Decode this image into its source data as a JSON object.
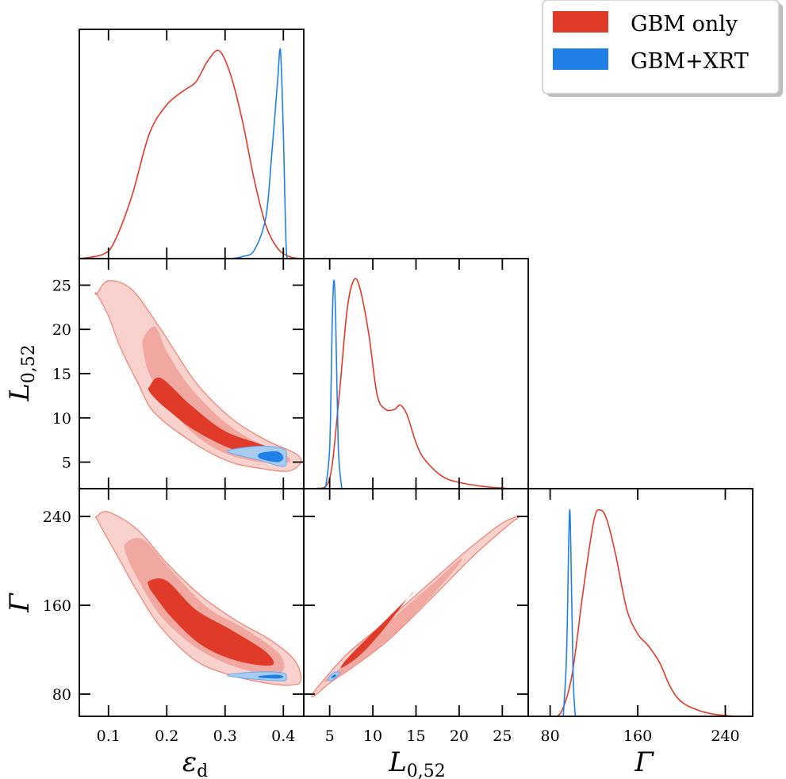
{
  "chart_data": {
    "type": "corner",
    "colors": {
      "gbm_only": "#e03a28",
      "gbm_xrt": "#2080e8"
    },
    "legend": {
      "placement": "top-right",
      "entries": [
        "GBM only",
        "GBM+XRT"
      ]
    },
    "grid": false,
    "parameters": [
      {
        "key": "eps",
        "label": "ε",
        "sub": "d",
        "range": [
          0.05,
          0.435
        ],
        "ticks": [
          0.1,
          0.2,
          0.3,
          0.4
        ],
        "tick_labels": [
          "0.1",
          "0.2",
          "0.3",
          "0.4"
        ]
      },
      {
        "key": "L",
        "label": "L",
        "sub": "0,52",
        "range": [
          2,
          28
        ],
        "ticks": [
          5,
          10,
          15,
          20,
          25
        ],
        "tick_labels": [
          "5",
          "10",
          "15",
          "20",
          "25"
        ]
      },
      {
        "key": "G",
        "label": "Γ",
        "sub": "",
        "range": [
          60,
          265
        ],
        "ticks": [
          80,
          160,
          240
        ],
        "tick_labels": [
          "80",
          "160",
          "240"
        ]
      }
    ],
    "marginals": {
      "eps": {
        "gbm_only": {
          "x": [
            0.05,
            0.09,
            0.11,
            0.14,
            0.17,
            0.2,
            0.23,
            0.25,
            0.27,
            0.29,
            0.31,
            0.33,
            0.35,
            0.37,
            0.39,
            0.41,
            0.43
          ],
          "y": [
            0.0,
            0.02,
            0.08,
            0.3,
            0.6,
            0.74,
            0.81,
            0.85,
            0.95,
            1.0,
            0.88,
            0.66,
            0.38,
            0.16,
            0.05,
            0.01,
            0.0
          ]
        },
        "gbm_xrt": {
          "x": [
            0.31,
            0.33,
            0.35,
            0.37,
            0.38,
            0.39,
            0.395,
            0.4,
            0.405,
            0.41
          ],
          "y": [
            0.0,
            0.01,
            0.04,
            0.2,
            0.5,
            0.85,
            1.0,
            0.6,
            0.05,
            0.0
          ]
        }
      },
      "L": {
        "gbm_only": {
          "x": [
            3.5,
            5,
            6,
            7,
            7.8,
            8.5,
            9.5,
            10.5,
            11.5,
            12.5,
            13.2,
            14,
            15,
            16,
            18,
            20,
            23,
            26
          ],
          "y": [
            0.0,
            0.05,
            0.4,
            0.85,
            1.0,
            0.96,
            0.75,
            0.45,
            0.38,
            0.38,
            0.4,
            0.35,
            0.22,
            0.14,
            0.06,
            0.03,
            0.01,
            0.0
          ]
        },
        "gbm_xrt": {
          "x": [
            4.5,
            5.0,
            5.3,
            5.5,
            5.7,
            6.0,
            6.4
          ],
          "y": [
            0.0,
            0.2,
            0.8,
            1.0,
            0.8,
            0.2,
            0.0
          ]
        }
      },
      "G": {
        "gbm_only": {
          "x": [
            80,
            90,
            100,
            110,
            120,
            126,
            132,
            140,
            150,
            160,
            170,
            180,
            190,
            200,
            215,
            230,
            250
          ],
          "y": [
            0.0,
            0.02,
            0.2,
            0.6,
            0.95,
            1.0,
            0.95,
            0.78,
            0.52,
            0.4,
            0.34,
            0.26,
            0.14,
            0.07,
            0.03,
            0.01,
            0.0
          ]
        },
        "gbm_xrt": {
          "x": [
            92,
            95,
            97,
            98,
            99,
            101,
            103
          ],
          "y": [
            0.0,
            0.3,
            0.85,
            1.0,
            0.8,
            0.2,
            0.0
          ]
        }
      }
    },
    "joint": [
      {
        "x": "eps",
        "y": "L",
        "gbm_only": [
          {
            "level": 2,
            "x": [
              0.08,
              0.1,
              0.14,
              0.19,
              0.25,
              0.31,
              0.37,
              0.42,
              0.43,
              0.41,
              0.37,
              0.31,
              0.25,
              0.18,
              0.15,
              0.12,
              0.1,
              0.08
            ],
            "y": [
              24,
              25.5,
              24.5,
              20,
              14,
              10,
              7.5,
              6,
              5,
              4,
              4.2,
              5,
              7,
              10.5,
              14,
              18,
              21.5,
              24
            ]
          },
          {
            "level": 1,
            "x": [
              0.16,
              0.18,
              0.2,
              0.24,
              0.3,
              0.36,
              0.4,
              0.41,
              0.36,
              0.3,
              0.25,
              0.2,
              0.17,
              0.16
            ],
            "y": [
              19,
              20.3,
              17.5,
              13.5,
              9.5,
              7,
              6,
              5,
              5,
              6,
              8,
              11.5,
              15,
              17.5
            ]
          },
          {
            "level": 0,
            "x": [
              0.17,
              0.19,
              0.24,
              0.3,
              0.37,
              0.38,
              0.32,
              0.25,
              0.2,
              0.18,
              0.17
            ],
            "y": [
              13.5,
              14.5,
              11.5,
              8.5,
              6.8,
              6,
              6.3,
              8.5,
              11,
              12.2,
              13
            ]
          }
        ],
        "gbm_xrt": [
          {
            "level": 1,
            "x": [
              0.31,
              0.36,
              0.4,
              0.405,
              0.4,
              0.36,
              0.31
            ],
            "y": [
              6.4,
              6.8,
              6.5,
              5.5,
              4.5,
              5.2,
              6.0
            ]
          },
          {
            "level": 0,
            "x": [
              0.36,
              0.39,
              0.4,
              0.39,
              0.36
            ],
            "y": [
              6.0,
              6.2,
              5.5,
              5.0,
              5.4
            ]
          }
        ]
      },
      {
        "x": "eps",
        "y": "G",
        "gbm_only": [
          {
            "level": 2,
            "x": [
              0.08,
              0.1,
              0.15,
              0.2,
              0.26,
              0.32,
              0.38,
              0.42,
              0.43,
              0.41,
              0.37,
              0.31,
              0.25,
              0.19,
              0.15,
              0.12,
              0.09,
              0.08
            ],
            "y": [
              240,
              244,
              228,
              198,
              168,
              146,
              128,
              110,
              92,
              88,
              90,
              97,
              110,
              140,
              172,
              200,
              228,
              238
            ]
          },
          {
            "level": 1,
            "x": [
              0.13,
              0.16,
              0.21,
              0.27,
              0.33,
              0.39,
              0.4,
              0.37,
              0.31,
              0.25,
              0.19,
              0.15,
              0.13
            ],
            "y": [
              216,
              219,
              190,
              158,
              140,
              118,
              102,
              98,
              106,
              122,
              150,
              184,
              206
            ]
          },
          {
            "level": 0,
            "x": [
              0.17,
              0.2,
              0.25,
              0.31,
              0.37,
              0.38,
              0.32,
              0.26,
              0.21,
              0.18,
              0.17
            ],
            "y": [
              182,
              182,
              156,
              138,
              118,
              106,
              110,
              124,
              148,
              168,
              176
            ]
          }
        ],
        "gbm_xrt": [
          {
            "level": 1,
            "x": [
              0.31,
              0.36,
              0.4,
              0.405,
              0.4,
              0.36,
              0.31
            ],
            "y": [
              98,
              100,
              99,
              95,
              92,
              93,
              96
            ]
          },
          {
            "level": 0,
            "x": [
              0.36,
              0.39,
              0.4,
              0.39,
              0.36
            ],
            "y": [
              96.5,
              97.5,
              95.5,
              94,
              94.8
            ]
          }
        ]
      },
      {
        "x": "L",
        "y": "G",
        "gbm_only": [
          {
            "level": 2,
            "x": [
              3,
              4,
              7,
              11,
              16,
              21,
              25,
              27,
              26,
              22,
              17,
              12,
              8,
              5,
              3.5,
              3
            ],
            "y": [
              80,
              90,
              116,
              142,
              176,
              210,
              234,
              240,
              234,
              207,
              168,
              130,
              106,
              90,
              80,
              78
            ]
          },
          {
            "level": 1,
            "x": [
              4.5,
              6,
              9,
              13,
              17,
              20,
              20,
              17,
              13,
              9,
              6,
              4.5
            ],
            "y": [
              93,
              102,
              125,
              153,
              180,
              201,
              197,
              170,
              138,
              112,
              96,
              91
            ]
          },
          {
            "level": 0,
            "x": [
              6.5,
              8,
              11,
              14.5,
              14,
              11,
              8.5,
              6.5
            ],
            "y": [
              107,
              120,
              143,
              170,
              166,
              136,
              115,
              104
            ]
          }
        ],
        "gbm_xrt": [
          {
            "level": 1,
            "x": [
              4.8,
              5.2,
              5.7,
              6.2,
              5.7,
              5.2,
              4.8
            ],
            "y": [
              94,
              98,
              100,
              99,
              95,
              92,
              93
            ]
          },
          {
            "level": 0,
            "x": [
              5.2,
              5.5,
              5.8,
              5.5,
              5.2
            ],
            "y": [
              95.5,
              97.5,
              97,
              95,
              94.5
            ]
          }
        ]
      }
    ]
  }
}
